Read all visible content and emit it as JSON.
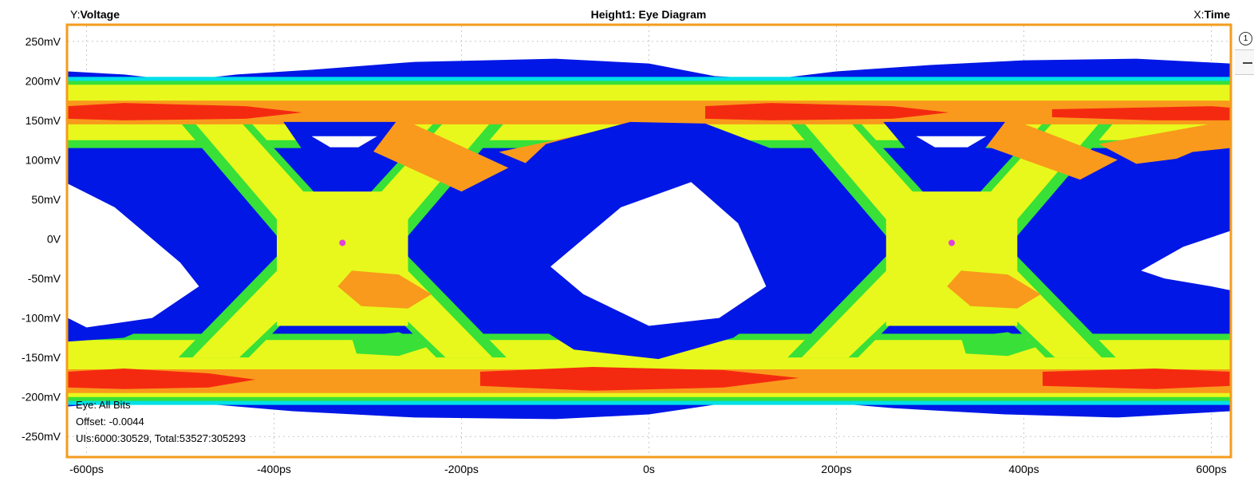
{
  "header": {
    "y_prefix": "Y:",
    "y_name": "Voltage",
    "title": "Height1: Eye Diagram",
    "x_prefix": "X:",
    "x_name": "Time"
  },
  "side_controls": {
    "marker_label": "1"
  },
  "info": {
    "line1": "Eye: All Bits",
    "line2": "Offset: -0.0044",
    "line3": "UIs:6000:30529, Total:53527:305293"
  },
  "colors": {
    "frame": "#f39c1e",
    "grid": "#c8c8c8",
    "blue": "#0017e6",
    "cyan": "#00e0e8",
    "green": "#38e038",
    "yellow": "#e8f81c",
    "orange": "#f99a1c",
    "red": "#f42a10",
    "marker": "#e040e0"
  },
  "chart_data": {
    "type": "heatmap",
    "title": "Height1: Eye Diagram",
    "xlabel": "Time",
    "ylabel": "Voltage",
    "xlim": [
      -620,
      620
    ],
    "ylim": [
      -275,
      270
    ],
    "x_unit": "ps",
    "y_unit": "mV",
    "grid": true,
    "x_ticks": [
      {
        "v": -600,
        "label": "-600ps"
      },
      {
        "v": -400,
        "label": "-400ps"
      },
      {
        "v": -200,
        "label": "-200ps"
      },
      {
        "v": 0,
        "label": "0s"
      },
      {
        "v": 200,
        "label": "200ps"
      },
      {
        "v": 400,
        "label": "400ps"
      },
      {
        "v": 600,
        "label": "600ps"
      }
    ],
    "y_ticks": [
      {
        "v": 250,
        "label": "250mV"
      },
      {
        "v": 200,
        "label": "200mV"
      },
      {
        "v": 150,
        "label": "150mV"
      },
      {
        "v": 100,
        "label": "100mV"
      },
      {
        "v": 50,
        "label": "50mV"
      },
      {
        "v": 0,
        "label": "0V"
      },
      {
        "v": -50,
        "label": "-50mV"
      },
      {
        "v": -100,
        "label": "-100mV"
      },
      {
        "v": -150,
        "label": "-150mV"
      },
      {
        "v": -200,
        "label": "-200mV"
      },
      {
        "v": -250,
        "label": "-250mV"
      }
    ],
    "crossing_points": [
      {
        "x": -327,
        "y": -5
      },
      {
        "x": 323,
        "y": -5
      }
    ],
    "eye_openings": [
      {
        "x": [
          -620,
          -480
        ],
        "y": [
          -110,
          70
        ]
      },
      {
        "x": [
          -105,
          125
        ],
        "y": [
          -115,
          75
        ]
      },
      {
        "x": [
          510,
          620
        ],
        "y": [
          -60,
          40
        ]
      }
    ],
    "rails": [
      {
        "name": "high",
        "center": 160,
        "spread": [
          125,
          205
        ]
      },
      {
        "name": "low",
        "center": -180,
        "spread": [
          -225,
          -145
        ]
      }
    ]
  }
}
